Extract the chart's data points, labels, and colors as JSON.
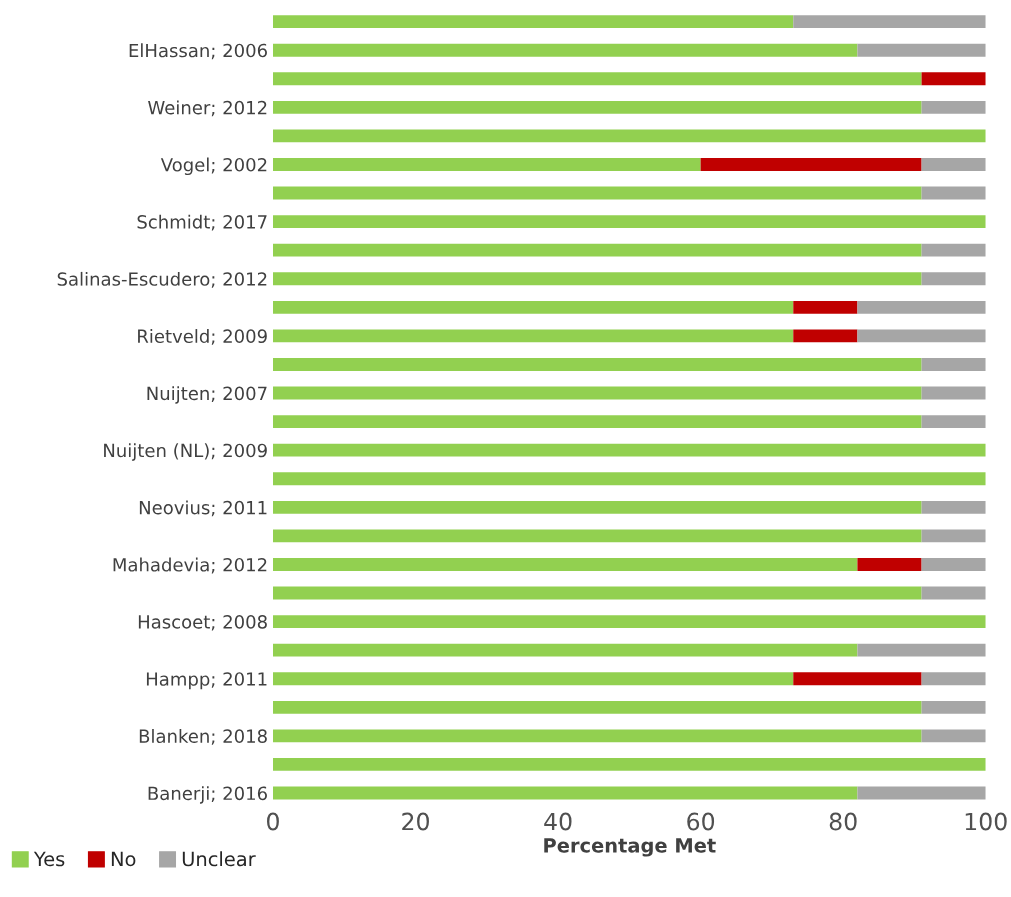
{
  "chart_data": {
    "type": "bar",
    "orientation": "horizontal",
    "stacked": true,
    "xlabel": "Percentage Met",
    "categories": [
      null,
      "ElHassan; 2006",
      null,
      "Weiner; 2012",
      null,
      "Vogel; 2002",
      null,
      "Schmidt; 2017",
      null,
      "Salinas-Escudero; 2012",
      null,
      "Rietveld; 2009",
      null,
      "Nuijten; 2007",
      null,
      "Nuijten (NL); 2009",
      null,
      "Neovius; 2011",
      null,
      "Mahadevia; 2012",
      null,
      "Hascoet; 2008",
      null,
      "Hampp; 2011",
      null,
      "Blanken; 2018",
      null,
      "Banerji; 2016"
    ],
    "series": [
      {
        "name": "Yes",
        "color": "#92d050",
        "values": [
          73,
          82,
          91,
          91,
          100,
          60,
          91,
          100,
          91,
          91,
          73,
          73,
          91,
          91,
          91,
          100,
          100,
          91,
          91,
          82,
          91,
          100,
          82,
          73,
          91,
          91,
          100,
          82
        ]
      },
      {
        "name": "No",
        "color": "#c00000",
        "values": [
          0,
          0,
          9,
          0,
          0,
          31,
          0,
          0,
          0,
          0,
          9,
          9,
          0,
          0,
          0,
          0,
          0,
          0,
          0,
          9,
          0,
          0,
          0,
          18,
          0,
          0,
          0,
          0
        ]
      },
      {
        "name": "Unclear",
        "color": "#a6a6a6",
        "values": [
          27,
          18,
          0,
          9,
          0,
          9,
          9,
          0,
          9,
          9,
          18,
          18,
          9,
          9,
          9,
          0,
          0,
          9,
          9,
          9,
          9,
          0,
          18,
          9,
          9,
          9,
          0,
          18
        ]
      }
    ],
    "xlim": [
      0,
      100
    ],
    "xticks": [
      0,
      20,
      40,
      60,
      80,
      100
    ],
    "grid": false,
    "legend": "bottom left"
  }
}
